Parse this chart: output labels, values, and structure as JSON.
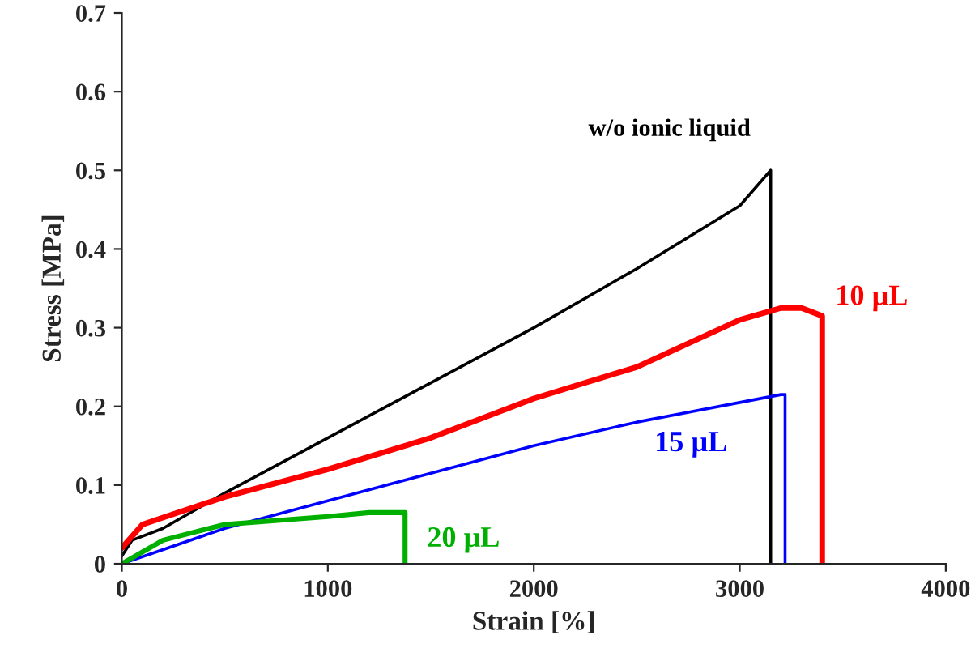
{
  "chart_data": {
    "type": "line",
    "xlabel": "Strain [%]",
    "ylabel": "Stress [MPa]",
    "xlim": [
      0,
      4000
    ],
    "xticks": [
      0,
      1000,
      2000,
      3000,
      4000
    ],
    "ylim": [
      0,
      0.7
    ],
    "yticks": [
      0,
      0.1,
      0.2,
      0.3,
      0.4,
      0.5,
      0.6,
      0.7
    ],
    "grid": false,
    "legend": false,
    "marker": "none",
    "line_style": "solid",
    "series": [
      {
        "name": "w/o ionic liquid",
        "color": "#000000",
        "x": [
          0,
          50,
          200,
          500,
          1000,
          1500,
          2000,
          2500,
          3000,
          3150,
          3150
        ],
        "values": [
          0.01,
          0.03,
          0.045,
          0.09,
          0.16,
          0.23,
          0.3,
          0.375,
          0.455,
          0.5,
          0
        ]
      },
      {
        "name": "10 µL",
        "color": "#ff0000",
        "x": [
          0,
          100,
          500,
          1000,
          1500,
          2000,
          2500,
          3000,
          3200,
          3300,
          3400,
          3400
        ],
        "values": [
          0.02,
          0.05,
          0.085,
          0.12,
          0.16,
          0.21,
          0.25,
          0.31,
          0.325,
          0.325,
          0.315,
          0
        ]
      },
      {
        "name": "15 µL",
        "color": "#0000ff",
        "x": [
          0,
          500,
          1000,
          1500,
          2000,
          2500,
          3000,
          3200,
          3220,
          3220
        ],
        "values": [
          0,
          0.045,
          0.08,
          0.115,
          0.15,
          0.18,
          0.205,
          0.215,
          0.215,
          0
        ]
      },
      {
        "name": "20 µL",
        "color": "#00b000",
        "x": [
          0,
          200,
          500,
          1000,
          1200,
          1370,
          1375,
          1375
        ],
        "values": [
          0,
          0.03,
          0.05,
          0.06,
          0.065,
          0.065,
          0.065,
          0
        ]
      }
    ]
  }
}
